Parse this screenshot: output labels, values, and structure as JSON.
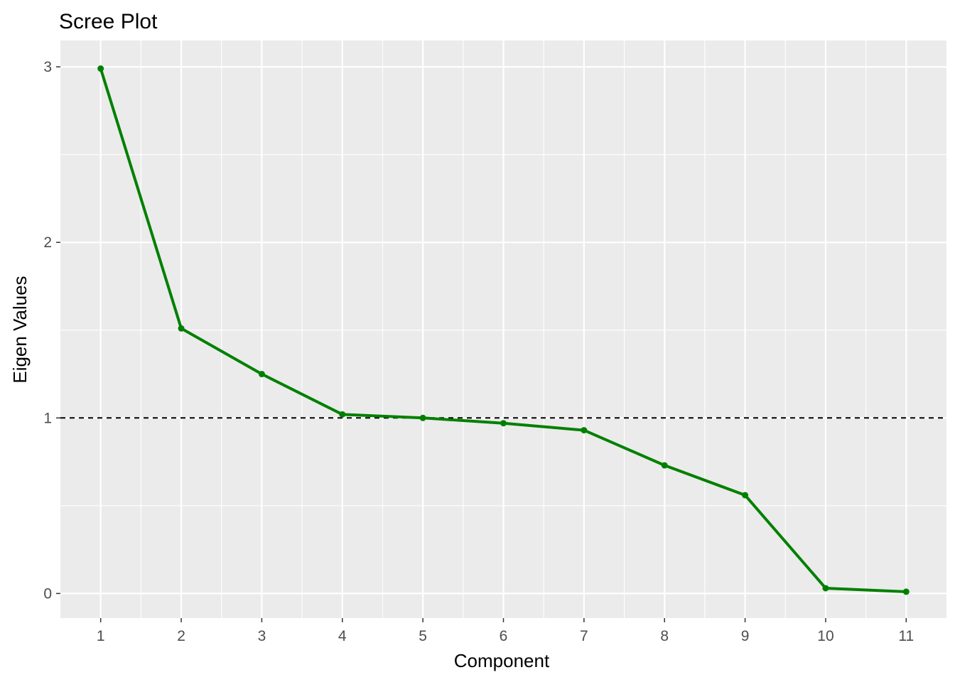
{
  "chart_data": {
    "type": "line",
    "title": "Scree Plot",
    "xlabel": "Component",
    "ylabel": "Eigen Values",
    "x": [
      1,
      2,
      3,
      4,
      5,
      6,
      7,
      8,
      9,
      10,
      11
    ],
    "x_tick_labels": [
      "1",
      "2",
      "3",
      "4",
      "5",
      "6",
      "7",
      "8",
      "9",
      "10",
      "11"
    ],
    "y_ticks": [
      0,
      1,
      2,
      3
    ],
    "y_tick_labels": [
      "0",
      "1",
      "2",
      "3"
    ],
    "xlim": [
      0.5,
      11.5
    ],
    "ylim": [
      -0.14,
      3.15
    ],
    "series": [
      {
        "values": [
          2.99,
          1.51,
          1.25,
          1.02,
          1.0,
          0.97,
          0.93,
          0.73,
          0.56,
          0.03,
          0.01
        ],
        "color": "#008000",
        "markers": true
      }
    ],
    "reference_line": {
      "y": 1,
      "style": "dashed",
      "color": "#000000"
    },
    "grid": true,
    "panel_background": "#ebebeb",
    "grid_color": "#ffffff"
  }
}
